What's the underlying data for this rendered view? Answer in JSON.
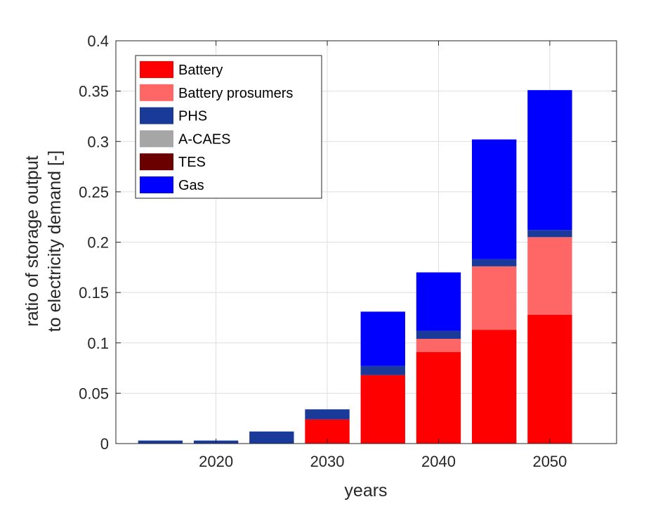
{
  "chart_data": {
    "type": "bar",
    "stacked": true,
    "x": [
      2015,
      2020,
      2025,
      2030,
      2035,
      2040,
      2045,
      2050
    ],
    "xticks": [
      "2020",
      "2030",
      "2040",
      "2050"
    ],
    "xlabel": "years",
    "ylabel_lines": [
      "ratio of storage output",
      "to electricity demand [-]"
    ],
    "ylim": [
      0,
      0.4
    ],
    "xlim": [
      2011,
      2056
    ],
    "yticks": [
      "0",
      "0.05",
      "0.1",
      "0.15",
      "0.2",
      "0.25",
      "0.3",
      "0.35",
      "0.4"
    ],
    "grid": true,
    "legend_position": "top-left",
    "series": [
      {
        "name": "Battery",
        "color": "#ff0000",
        "values": [
          0,
          0,
          0,
          0.024,
          0.068,
          0.091,
          0.113,
          0.128
        ]
      },
      {
        "name": "Battery prosumers",
        "color": "#ff6666",
        "values": [
          0,
          0,
          0,
          0,
          0,
          0.013,
          0.063,
          0.077
        ]
      },
      {
        "name": "PHS",
        "color": "#1a3a9a",
        "values": [
          0.003,
          0.003,
          0.012,
          0.01,
          0.009,
          0.008,
          0.007,
          0.007
        ]
      },
      {
        "name": "A-CAES",
        "color": "#a6a6a6",
        "values": [
          0,
          0,
          0,
          0,
          0,
          0,
          0,
          0
        ]
      },
      {
        "name": "TES",
        "color": "#6b0000",
        "values": [
          0,
          0,
          0,
          0,
          0,
          0,
          0,
          0
        ]
      },
      {
        "name": "Gas",
        "color": "#0000ff",
        "values": [
          0,
          0,
          0,
          0,
          0.054,
          0.058,
          0.119,
          0.139
        ]
      }
    ]
  }
}
